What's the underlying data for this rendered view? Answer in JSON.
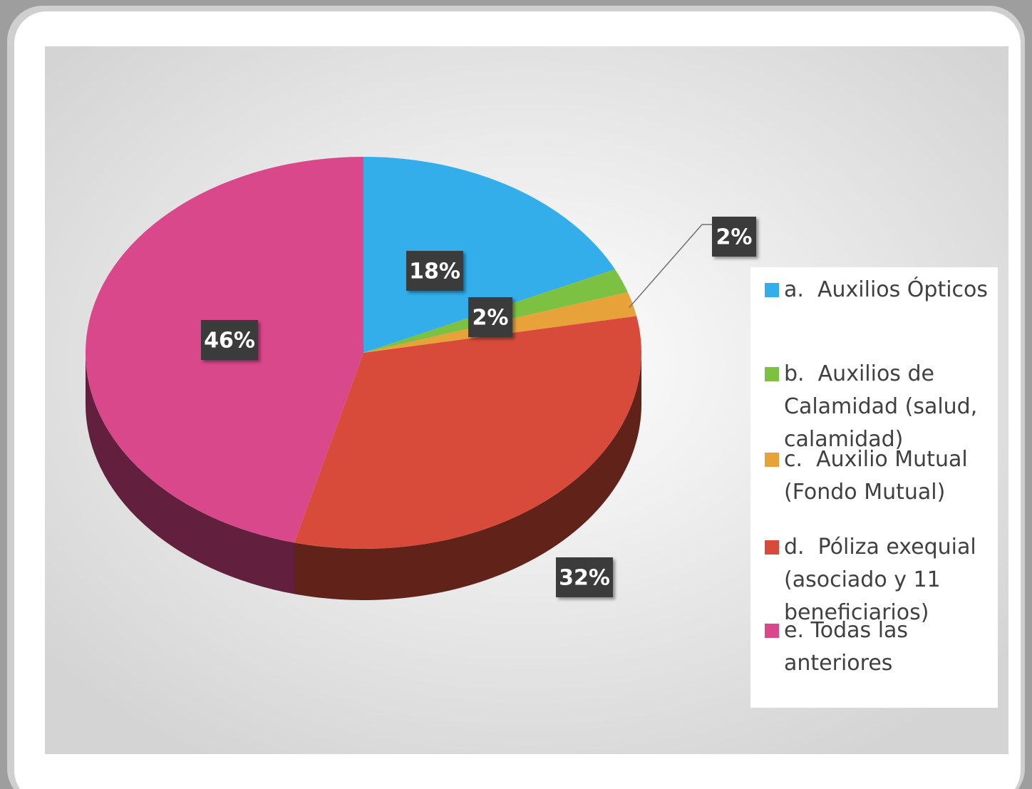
{
  "chart_data": {
    "type": "pie",
    "categories": [
      "a.  Auxilios Ópticos",
      "b.  Auxilios de Calamidad (salud, calamidad)",
      "c.  Auxilio Mutual (Fondo Mutual)",
      "d.  Póliza exequial (asociado y 11 beneficiarios)",
      "e. Todas las anteriores"
    ],
    "values": [
      18,
      2,
      2,
      32,
      46
    ],
    "value_labels": [
      "18%",
      "2%",
      "2%",
      "32%",
      "46%"
    ],
    "colors": [
      "#33aeea",
      "#7dc142",
      "#e8a23a",
      "#d84b3a",
      "#d9488a"
    ],
    "legend": "right"
  }
}
